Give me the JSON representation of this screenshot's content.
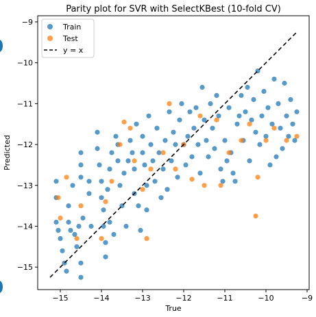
{
  "chart_data": {
    "type": "scatter",
    "title": "Parity plot for SVR with SelectKBest (10-fold CV)",
    "xlabel": "True",
    "ylabel": "Predicted",
    "xlim": [
      -15.55,
      -8.95
    ],
    "ylim": [
      -15.55,
      -8.85
    ],
    "xticks": [
      -15,
      -14,
      -13,
      -12,
      -11,
      -10,
      -9
    ],
    "yticks": [
      -15,
      -14,
      -13,
      -12,
      -11,
      -10,
      -9
    ],
    "xtick_labels": [
      "−15",
      "−14",
      "−13",
      "−12",
      "−11",
      "−10",
      "−9"
    ],
    "ytick_labels": [
      "−15",
      "−14",
      "−13",
      "−12",
      "−11",
      "−10",
      "−9"
    ],
    "grid": false,
    "legend": {
      "position": "top-left",
      "entries": [
        "Train",
        "Test",
        "y = x"
      ]
    },
    "series": [
      {
        "name": "Train",
        "color": "#1f77b4",
        "points": [
          [
            -15.1,
            -12.9
          ],
          [
            -15.1,
            -13.3
          ],
          [
            -15.1,
            -13.9
          ],
          [
            -15.05,
            -14.1
          ],
          [
            -15.0,
            -14.3
          ],
          [
            -14.95,
            -14.6
          ],
          [
            -14.9,
            -14.9
          ],
          [
            -14.85,
            -15.1
          ],
          [
            -14.8,
            -13.5
          ],
          [
            -14.8,
            -13.9
          ],
          [
            -14.75,
            -14.1
          ],
          [
            -14.7,
            -13.0
          ],
          [
            -14.65,
            -14.2
          ],
          [
            -14.6,
            -14.5
          ],
          [
            -14.55,
            -14.0
          ],
          [
            -14.5,
            -12.2
          ],
          [
            -14.5,
            -12.5
          ],
          [
            -14.5,
            -12.8
          ],
          [
            -14.5,
            -14.9
          ],
          [
            -14.5,
            -15.25
          ],
          [
            -14.45,
            -13.8
          ],
          [
            -14.3,
            -12.9
          ],
          [
            -14.3,
            -13.2
          ],
          [
            -14.25,
            -14.0
          ],
          [
            -14.1,
            -11.7
          ],
          [
            -14.1,
            -12.1
          ],
          [
            -14.05,
            -12.5
          ],
          [
            -14.0,
            -12.9
          ],
          [
            -14.0,
            -13.3
          ],
          [
            -13.95,
            -13.6
          ],
          [
            -13.95,
            -14.0
          ],
          [
            -13.9,
            -14.4
          ],
          [
            -13.9,
            -14.75
          ],
          [
            -13.85,
            -13.1
          ],
          [
            -13.8,
            -12.6
          ],
          [
            -13.8,
            -13.9
          ],
          [
            -13.75,
            -12.2
          ],
          [
            -13.7,
            -14.2
          ],
          [
            -13.65,
            -11.8
          ],
          [
            -13.6,
            -12.0
          ],
          [
            -13.6,
            -12.4
          ],
          [
            -13.55,
            -13.0
          ],
          [
            -13.5,
            -13.5
          ],
          [
            -13.45,
            -12.7
          ],
          [
            -13.4,
            -14.0
          ],
          [
            -13.35,
            -12.4
          ],
          [
            -13.3,
            -11.9
          ],
          [
            -13.25,
            -12.2
          ],
          [
            -13.2,
            -12.6
          ],
          [
            -13.2,
            -13.2
          ],
          [
            -13.15,
            -11.5
          ],
          [
            -13.1,
            -13.5
          ],
          [
            -13.05,
            -14.1
          ],
          [
            -13.0,
            -11.8
          ],
          [
            -13.0,
            -12.2
          ],
          [
            -12.95,
            -12.5
          ],
          [
            -12.9,
            -13.0
          ],
          [
            -12.9,
            -13.6
          ],
          [
            -12.85,
            -11.3
          ],
          [
            -12.8,
            -12.0
          ],
          [
            -12.75,
            -12.4
          ],
          [
            -12.7,
            -12.9
          ],
          [
            -12.65,
            -11.6
          ],
          [
            -12.6,
            -12.2
          ],
          [
            -12.55,
            -13.3
          ],
          [
            -12.5,
            -12.6
          ],
          [
            -12.45,
            -11.9
          ],
          [
            -12.4,
            -13.1
          ],
          [
            -12.35,
            -11.2
          ],
          [
            -12.3,
            -12.4
          ],
          [
            -12.25,
            -11.7
          ],
          [
            -12.2,
            -12.0
          ],
          [
            -12.15,
            -12.8
          ],
          [
            -12.1,
            -11.4
          ],
          [
            -12.05,
            -11.0
          ],
          [
            -12.0,
            -12.0
          ],
          [
            -11.95,
            -12.5
          ],
          [
            -11.9,
            -11.8
          ],
          [
            -11.85,
            -11.2
          ],
          [
            -11.8,
            -12.3
          ],
          [
            -11.75,
            -11.6
          ],
          [
            -11.7,
            -11.1
          ],
          [
            -11.65,
            -12.0
          ],
          [
            -11.6,
            -12.7
          ],
          [
            -11.55,
            -10.6
          ],
          [
            -11.5,
            -11.4
          ],
          [
            -11.45,
            -11.9
          ],
          [
            -11.4,
            -12.3
          ],
          [
            -11.35,
            -11.0
          ],
          [
            -11.3,
            -11.6
          ],
          [
            -11.25,
            -12.1
          ],
          [
            -11.2,
            -10.8
          ],
          [
            -11.15,
            -11.3
          ],
          [
            -11.1,
            -12.6
          ],
          [
            -11.05,
            -12.9
          ],
          [
            -11.0,
            -11.9
          ],
          [
            -10.95,
            -12.4
          ],
          [
            -10.9,
            -11.1
          ],
          [
            -10.85,
            -12.2
          ],
          [
            -10.8,
            -12.7
          ],
          [
            -10.75,
            -12.9
          ],
          [
            -10.7,
            -11.5
          ],
          [
            -10.65,
            -11.3
          ],
          [
            -10.6,
            -10.8
          ],
          [
            -10.55,
            -11.9
          ],
          [
            -10.5,
            -11.2
          ],
          [
            -10.45,
            -10.6
          ],
          [
            -10.4,
            -12.4
          ],
          [
            -10.35,
            -11.4
          ],
          [
            -10.3,
            -10.9
          ],
          [
            -10.25,
            -11.7
          ],
          [
            -10.2,
            -10.2
          ],
          [
            -10.15,
            -12.0
          ],
          [
            -10.1,
            -11.3
          ],
          [
            -10.05,
            -10.7
          ],
          [
            -10.0,
            -11.8
          ],
          [
            -9.95,
            -11.1
          ],
          [
            -9.9,
            -12.5
          ],
          [
            -9.85,
            -11.5
          ],
          [
            -9.8,
            -10.4
          ],
          [
            -9.75,
            -12.3
          ],
          [
            -9.7,
            -11.0
          ],
          [
            -9.65,
            -11.6
          ],
          [
            -9.6,
            -12.1
          ],
          [
            -9.55,
            -10.5
          ],
          [
            -9.5,
            -11.3
          ],
          [
            -9.45,
            -11.8
          ],
          [
            -9.4,
            -10.9
          ],
          [
            -9.35,
            -11.5
          ],
          [
            -9.3,
            -11.9
          ],
          [
            -9.25,
            -11.2
          ]
        ]
      },
      {
        "name": "Test",
        "color": "#ff7f0e",
        "points": [
          [
            -15.05,
            -13.3
          ],
          [
            -15.0,
            -13.8
          ],
          [
            -14.85,
            -12.8
          ],
          [
            -14.6,
            -14.3
          ],
          [
            -14.5,
            -13.5
          ],
          [
            -14.0,
            -14.3
          ],
          [
            -13.9,
            -13.4
          ],
          [
            -13.75,
            -12.9
          ],
          [
            -13.55,
            -12.0
          ],
          [
            -13.45,
            -11.45
          ],
          [
            -13.3,
            -11.6
          ],
          [
            -13.2,
            -12.4
          ],
          [
            -13.0,
            -13.1
          ],
          [
            -12.9,
            -14.3
          ],
          [
            -12.8,
            -12.6
          ],
          [
            -12.5,
            -12.2
          ],
          [
            -12.35,
            -11.0
          ],
          [
            -12.2,
            -12.6
          ],
          [
            -12.0,
            -12.0
          ],
          [
            -11.8,
            -12.85
          ],
          [
            -11.6,
            -11.3
          ],
          [
            -11.5,
            -13.0
          ],
          [
            -11.2,
            -11.4
          ],
          [
            -11.1,
            -13.0
          ],
          [
            -10.9,
            -12.2
          ],
          [
            -10.6,
            -11.9
          ],
          [
            -10.4,
            -11.5
          ],
          [
            -10.25,
            -13.75
          ],
          [
            -10.2,
            -12.8
          ],
          [
            -10.0,
            -11.9
          ],
          [
            -9.8,
            -11.6
          ],
          [
            -9.5,
            -11.9
          ],
          [
            -9.25,
            -11.8
          ]
        ]
      }
    ],
    "reference_line": {
      "name": "y = x",
      "x": [
        -15.25,
        -9.25
      ],
      "y": [
        -15.25,
        -9.25
      ],
      "style": "dashed",
      "color": "#000000"
    }
  }
}
